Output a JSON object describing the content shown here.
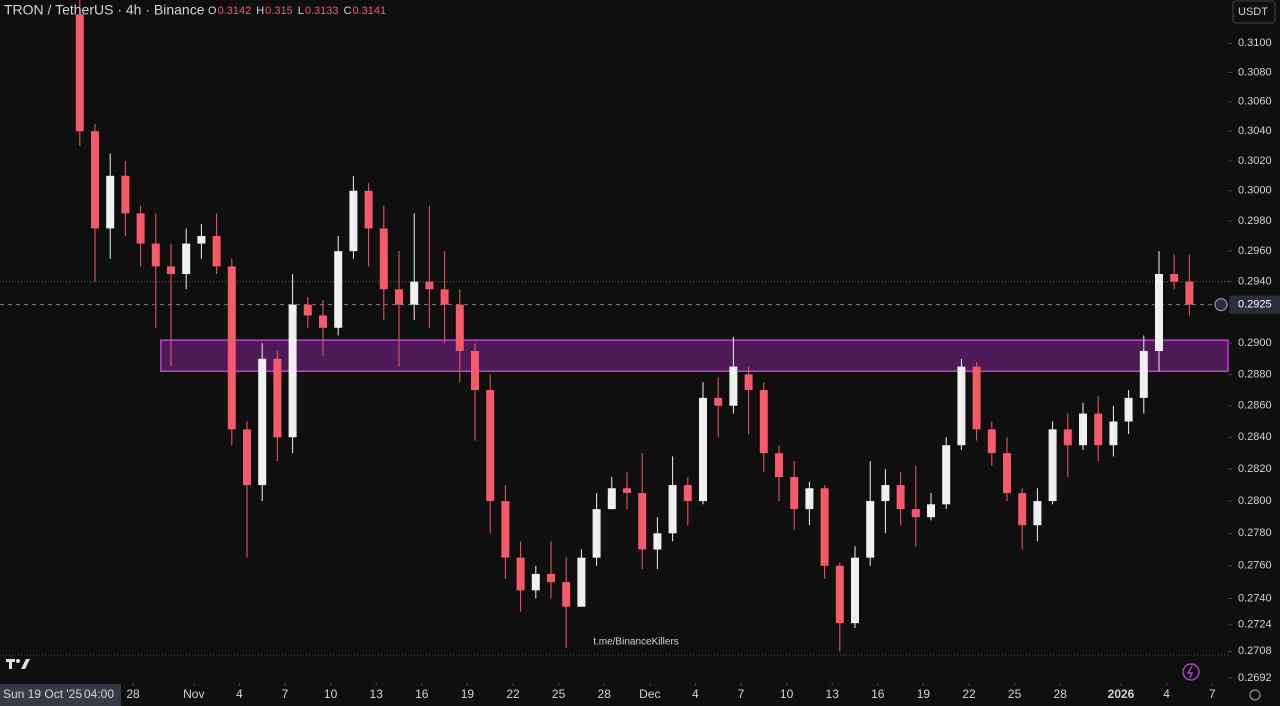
{
  "chart_data": {
    "type": "candlestick",
    "title": "TRON / TetherUS · 4h · Binance",
    "ohlc_legend": [
      {
        "key": "O",
        "value": 0.3142
      },
      {
        "key": "H",
        "value": 0.315
      },
      {
        "key": "L",
        "value": 0.3133
      },
      {
        "key": "C",
        "value": 0.3141
      }
    ],
    "currency": "USDT",
    "watermark": "t.me/BinanceKillers",
    "crosshair": {
      "label": "Sun 19 Oct '25",
      "time": "04:00"
    },
    "up_color": "#f0f0f0",
    "down_color": "#f45a68",
    "log_scale": true,
    "x": [
      "2025-10-24",
      "2025-10-25",
      "2025-10-26",
      "2025-10-27",
      "2025-10-28",
      "2025-10-29",
      "2025-10-30",
      "2025-10-31",
      "2025-11-01",
      "2025-11-02",
      "2025-11-03",
      "2025-11-04",
      "2025-11-05",
      "2025-11-06",
      "2025-11-07",
      "2025-11-08",
      "2025-11-09",
      "2025-11-10",
      "2025-11-11",
      "2025-11-12",
      "2025-11-13",
      "2025-11-14",
      "2025-11-15",
      "2025-11-16",
      "2025-11-17",
      "2025-11-18",
      "2025-11-19",
      "2025-11-20",
      "2025-11-21",
      "2025-11-22",
      "2025-11-23",
      "2025-11-24",
      "2025-11-25",
      "2025-11-26",
      "2025-11-27",
      "2025-11-28",
      "2025-11-29",
      "2025-11-30",
      "2025-12-01",
      "2025-12-02",
      "2025-12-03",
      "2025-12-04",
      "2025-12-05",
      "2025-12-06",
      "2025-12-07",
      "2025-12-08",
      "2025-12-09",
      "2025-12-10",
      "2025-12-11",
      "2025-12-12",
      "2025-12-13",
      "2025-12-14",
      "2025-12-15",
      "2025-12-16",
      "2025-12-17",
      "2025-12-18",
      "2025-12-19",
      "2025-12-20",
      "2025-12-21",
      "2025-12-22",
      "2025-12-23",
      "2025-12-24",
      "2025-12-25",
      "2025-12-26",
      "2025-12-27",
      "2025-12-28",
      "2025-12-29",
      "2025-12-30",
      "2025-12-31",
      "2026-01-01",
      "2026-01-02",
      "2026-01-03",
      "2026-01-04",
      "2026-01-05"
    ],
    "open": [
      0.312,
      0.304,
      0.2975,
      0.301,
      0.2985,
      0.2965,
      0.295,
      0.2945,
      0.2965,
      0.297,
      0.295,
      0.2845,
      0.281,
      0.289,
      0.284,
      0.2925,
      0.2918,
      0.291,
      0.296,
      0.3,
      0.2975,
      0.2935,
      0.2925,
      0.294,
      0.2935,
      0.2925,
      0.2895,
      0.287,
      0.28,
      0.2765,
      0.2745,
      0.2755,
      0.275,
      0.2735,
      0.2765,
      0.2795,
      0.2808,
      0.2805,
      0.277,
      0.278,
      0.281,
      0.28,
      0.2865,
      0.286,
      0.288,
      0.287,
      0.283,
      0.2815,
      0.2795,
      0.2808,
      0.276,
      0.2725,
      0.2765,
      0.28,
      0.281,
      0.2795,
      0.279,
      0.2798,
      0.2835,
      0.2885,
      0.2845,
      0.283,
      0.2805,
      0.2785,
      0.28,
      0.2845,
      0.2835,
      0.2855,
      0.2835,
      0.285,
      0.2865,
      0.2895,
      0.2945,
      0.294
    ],
    "high": [
      0.313,
      0.3045,
      0.3025,
      0.302,
      0.299,
      0.2985,
      0.2965,
      0.2975,
      0.2978,
      0.2985,
      0.2955,
      0.285,
      0.29,
      0.2895,
      0.2945,
      0.293,
      0.2928,
      0.297,
      0.301,
      0.3005,
      0.299,
      0.296,
      0.2985,
      0.299,
      0.296,
      0.2935,
      0.29,
      0.288,
      0.281,
      0.2775,
      0.276,
      0.2775,
      0.2765,
      0.277,
      0.2805,
      0.2815,
      0.2818,
      0.283,
      0.279,
      0.2828,
      0.2815,
      0.2875,
      0.2878,
      0.2904,
      0.2885,
      0.2875,
      0.2835,
      0.2825,
      0.2812,
      0.281,
      0.2762,
      0.2772,
      0.2825,
      0.282,
      0.2818,
      0.2822,
      0.2805,
      0.284,
      0.289,
      0.2888,
      0.285,
      0.284,
      0.2808,
      0.2808,
      0.285,
      0.2855,
      0.2862,
      0.2866,
      0.286,
      0.287,
      0.2905,
      0.296,
      0.2958,
      0.2958
    ],
    "low": [
      0.303,
      0.294,
      0.2955,
      0.297,
      0.295,
      0.291,
      0.2885,
      0.2935,
      0.2955,
      0.2945,
      0.2835,
      0.2765,
      0.28,
      0.2825,
      0.283,
      0.291,
      0.2892,
      0.2905,
      0.2955,
      0.295,
      0.2915,
      0.2885,
      0.2915,
      0.291,
      0.29,
      0.2875,
      0.2838,
      0.278,
      0.2752,
      0.2732,
      0.274,
      0.274,
      0.271,
      0.2735,
      0.276,
      0.2795,
      0.2795,
      0.2758,
      0.2758,
      0.2775,
      0.2785,
      0.2798,
      0.284,
      0.2855,
      0.2842,
      0.2818,
      0.28,
      0.2782,
      0.2785,
      0.2752,
      0.2708,
      0.2722,
      0.276,
      0.278,
      0.2785,
      0.2772,
      0.2788,
      0.2795,
      0.2832,
      0.2838,
      0.2822,
      0.28,
      0.277,
      0.2775,
      0.2798,
      0.2815,
      0.2832,
      0.2825,
      0.2828,
      0.2842,
      0.2855,
      0.2882,
      0.2935,
      0.2918
    ],
    "close": [
      0.304,
      0.2975,
      0.301,
      0.2985,
      0.2965,
      0.295,
      0.2945,
      0.2965,
      0.297,
      0.295,
      0.2845,
      0.281,
      0.289,
      0.284,
      0.2925,
      0.2918,
      0.291,
      0.296,
      0.3,
      0.2975,
      0.2935,
      0.2925,
      0.294,
      0.2935,
      0.2925,
      0.2895,
      0.287,
      0.28,
      0.2765,
      0.2745,
      0.2755,
      0.275,
      0.2735,
      0.2765,
      0.2795,
      0.2808,
      0.2805,
      0.277,
      0.278,
      0.281,
      0.28,
      0.2865,
      0.286,
      0.2885,
      0.287,
      0.283,
      0.2815,
      0.2795,
      0.2808,
      0.276,
      0.2725,
      0.2765,
      0.28,
      0.281,
      0.2795,
      0.279,
      0.2798,
      0.2835,
      0.2885,
      0.2845,
      0.283,
      0.2805,
      0.2785,
      0.28,
      0.2845,
      0.2835,
      0.2855,
      0.2835,
      0.285,
      0.2865,
      0.2895,
      0.2945,
      0.294,
      0.2925
    ],
    "zone": {
      "start": "2025-10-29T20:00",
      "top": 0.2902,
      "bottom": 0.2882,
      "color": "#9c27b0"
    },
    "last_price": {
      "value": 0.2925,
      "label": "0.2925"
    },
    "high_line": 0.294,
    "ylim": [
      0.2689,
      0.313
    ],
    "yticks": [
      {
        "value": 0.31,
        "label": "0.3100"
      },
      {
        "value": 0.308,
        "label": "0.3080"
      },
      {
        "value": 0.306,
        "label": "0.3060"
      },
      {
        "value": 0.304,
        "label": "0.3040"
      },
      {
        "value": 0.302,
        "label": "0.3020"
      },
      {
        "value": 0.3,
        "label": "0.3000"
      },
      {
        "value": 0.298,
        "label": "0.2980"
      },
      {
        "value": 0.296,
        "label": "0.2960"
      },
      {
        "value": 0.294,
        "label": "0.2940"
      },
      {
        "value": 0.29,
        "label": "0.2900"
      },
      {
        "value": 0.288,
        "label": "0.2880"
      },
      {
        "value": 0.286,
        "label": "0.2860"
      },
      {
        "value": 0.284,
        "label": "0.2840"
      },
      {
        "value": 0.282,
        "label": "0.2820"
      },
      {
        "value": 0.28,
        "label": "0.2800"
      },
      {
        "value": 0.278,
        "label": "0.2780"
      },
      {
        "value": 0.276,
        "label": "0.2760"
      },
      {
        "value": 0.274,
        "label": "0.2740"
      },
      {
        "value": 0.2724,
        "label": "0.2724"
      },
      {
        "value": 0.2708,
        "label": "0.2708"
      },
      {
        "value": 0.2692,
        "label": "0.2692"
      }
    ],
    "xticks": [
      {
        "value": "2025-10-28",
        "label": "28"
      },
      {
        "value": "2025-11-01",
        "label": "Nov"
      },
      {
        "value": "2025-11-04",
        "label": "4"
      },
      {
        "value": "2025-11-07",
        "label": "7"
      },
      {
        "value": "2025-11-10",
        "label": "10"
      },
      {
        "value": "2025-11-13",
        "label": "13"
      },
      {
        "value": "2025-11-16",
        "label": "16"
      },
      {
        "value": "2025-11-19",
        "label": "19"
      },
      {
        "value": "2025-11-22",
        "label": "22"
      },
      {
        "value": "2025-11-25",
        "label": "25"
      },
      {
        "value": "2025-11-28",
        "label": "28"
      },
      {
        "value": "2025-12-01",
        "label": "Dec"
      },
      {
        "value": "2025-12-04",
        "label": "4"
      },
      {
        "value": "2025-12-07",
        "label": "7"
      },
      {
        "value": "2025-12-10",
        "label": "10"
      },
      {
        "value": "2025-12-13",
        "label": "13"
      },
      {
        "value": "2025-12-16",
        "label": "16"
      },
      {
        "value": "2025-12-19",
        "label": "19"
      },
      {
        "value": "2025-12-22",
        "label": "22"
      },
      {
        "value": "2025-12-25",
        "label": "25"
      },
      {
        "value": "2025-12-28",
        "label": "28"
      },
      {
        "value": "2026-01-01",
        "label": "2026"
      },
      {
        "value": "2026-01-04",
        "label": "4"
      },
      {
        "value": "2026-01-07",
        "label": "7"
      }
    ]
  }
}
